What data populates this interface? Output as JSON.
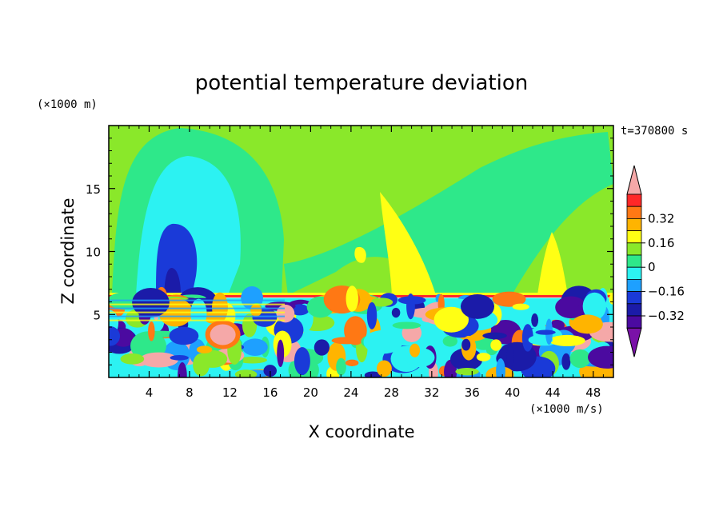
{
  "chart_data": {
    "type": "heatmap",
    "title": "potential temperature deviation",
    "xlabel": "X coordinate",
    "ylabel": "Z coordinate",
    "x_unit": "(×1000 m/s)",
    "y_unit": "(×1000 m)",
    "time_label": "t=370800 s",
    "xlim": [
      0,
      50
    ],
    "ylim": [
      0,
      20
    ],
    "x_ticks": [
      4,
      8,
      12,
      16,
      20,
      24,
      28,
      32,
      36,
      40,
      44,
      48
    ],
    "x_tick_labels": [
      "4",
      "8",
      "12",
      "16",
      "20",
      "24",
      "28",
      "32",
      "36",
      "40",
      "44",
      "48"
    ],
    "y_ticks": [
      5,
      10,
      15
    ],
    "y_tick_labels": [
      "5",
      "10",
      "15"
    ],
    "colorbar": {
      "levels": [
        -0.48,
        -0.4,
        -0.32,
        -0.24,
        -0.16,
        -0.08,
        0,
        0.08,
        0.16,
        0.24,
        0.32,
        0.4,
        0.48
      ],
      "labeled_levels": [
        "0.32",
        "0.16",
        "0",
        "−0.16",
        "−0.32"
      ],
      "colors": [
        "#7a11a8",
        "#4b0aa0",
        "#1b1ba8",
        "#1a3ad8",
        "#1ea0ff",
        "#2cf2f2",
        "#2ee88a",
        "#8ae82a",
        "#ffff14",
        "#ffb400",
        "#ff7814",
        "#ff2828",
        "#f5a8a8"
      ]
    },
    "inversion_height": 6.5
  }
}
